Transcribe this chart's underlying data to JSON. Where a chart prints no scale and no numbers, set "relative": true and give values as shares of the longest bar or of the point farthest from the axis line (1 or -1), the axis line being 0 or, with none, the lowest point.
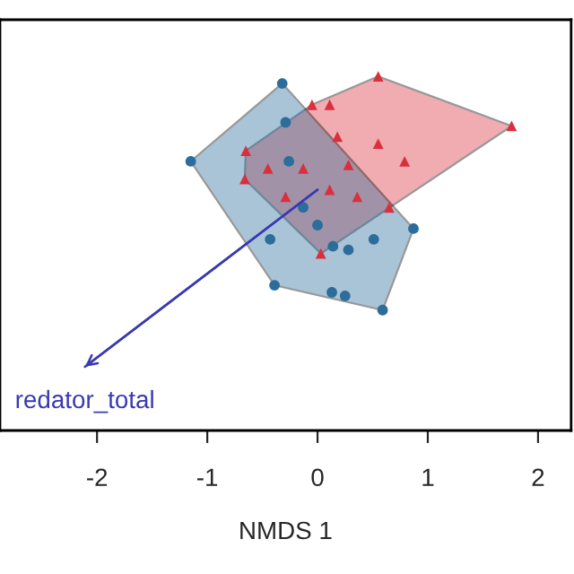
{
  "chart_data": {
    "type": "scatter",
    "xlabel": "NMDS 1",
    "relative": true,
    "xlim": [
      -2.88,
      2.3
    ],
    "xticks": [
      -2,
      -1,
      0,
      1,
      2
    ],
    "grid": false,
    "tick_labels": "x",
    "series": [
      {
        "color": "#d9303e",
        "marker": "triangle",
        "x": [
          0.55,
          1.76,
          -0.05,
          0.11,
          0.18,
          0.55,
          0.79,
          -0.65,
          -0.66,
          0.03,
          -0.29,
          -0.13,
          0.11,
          0.36,
          -0.45,
          0.28,
          0.65
        ],
        "values": [
          1.0,
          0.86,
          0.92,
          0.92,
          0.83,
          0.81,
          0.76,
          0.79,
          0.71,
          0.5,
          0.66,
          0.74,
          0.68,
          0.66,
          0.74,
          0.75,
          0.63
        ]
      },
      {
        "color": "#2c6d9c",
        "marker": "circle",
        "x": [
          -0.32,
          -1.15,
          0.87,
          0.59,
          -0.39,
          -0.43,
          0.51,
          0.14,
          0.13,
          0.25,
          -0.26,
          -0.29,
          0.0,
          -0.13,
          0.28
        ],
        "values": [
          0.98,
          0.76,
          0.57,
          0.34,
          0.41,
          0.54,
          0.54,
          0.52,
          0.39,
          0.38,
          0.76,
          0.87,
          0.58,
          0.63,
          0.51
        ]
      },
      {
        "type": "line",
        "color": "#3a3ab0",
        "x": [
          0,
          -2.11
        ],
        "values": [
          0.68,
          0.18
        ]
      }
    ],
    "annotations": [
      {
        "text": "redator_total",
        "x": -2.11,
        "y": 0.18
      }
    ]
  }
}
